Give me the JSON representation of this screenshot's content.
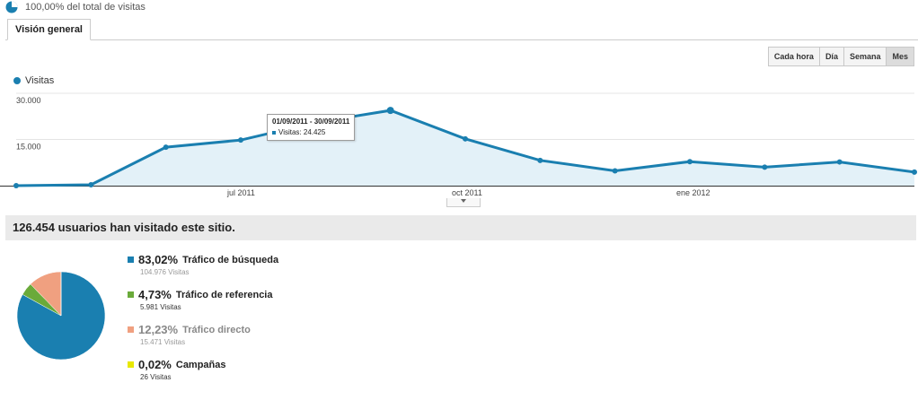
{
  "header": {
    "total_label": "100,00% del total de visitas",
    "tab_label": "Visión general"
  },
  "granularity": {
    "options": [
      "Cada hora",
      "Día",
      "Semana",
      "Mes"
    ],
    "selected": "Mes"
  },
  "legend": {
    "label": "Visitas",
    "color": "#1a7fb0"
  },
  "tooltip": {
    "range": "01/09/2011 - 30/09/2011",
    "value": "Visitas: 24.425"
  },
  "chart_data": {
    "type": "area",
    "series": [
      {
        "name": "Visitas",
        "color": "#1a7fb0",
        "values": [
          0,
          300,
          12500,
          14800,
          20500,
          24425,
          15200,
          8200,
          4800,
          7800,
          6000,
          7700,
          4400
        ]
      }
    ],
    "x_tick_labels": [
      "jul 2011",
      "oct 2011",
      "ene 2012"
    ],
    "y_tick_labels": [
      "30.000",
      "15.000"
    ],
    "ylim": [
      0,
      30000
    ]
  },
  "summary": {
    "text": "126.454 usuarios han visitado este sitio."
  },
  "traffic": [
    {
      "pct": "83,02%",
      "label": "Tráfico de búsqueda",
      "visits": "104.976 Visitas",
      "color": "#1a7fb0",
      "share": 83.02
    },
    {
      "pct": "4,73%",
      "label": "Tráfico de referencia",
      "visits": "5.981 Visitas",
      "color": "#6aaa3a",
      "share": 4.73
    },
    {
      "pct": "12,23%",
      "label": "Tráfico directo",
      "visits": "15.471 Visitas",
      "color": "#f0a080",
      "share": 12.23
    },
    {
      "pct": "0,02%",
      "label": "Campañas",
      "visits": "26 Visitas",
      "color": "#e8e800",
      "share": 0.02
    }
  ]
}
